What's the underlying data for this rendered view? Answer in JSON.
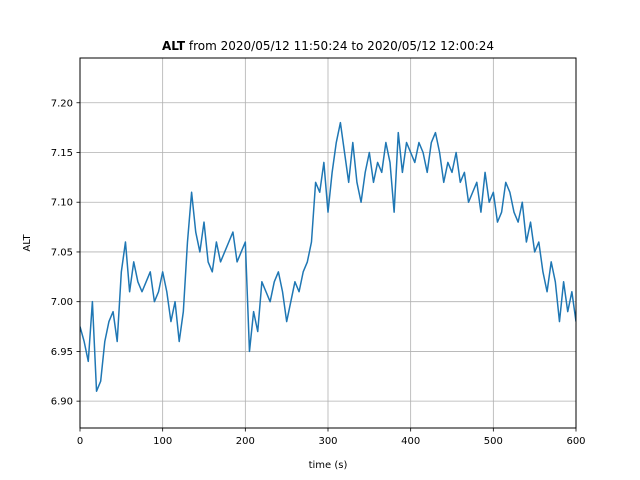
{
  "chart_data": {
    "type": "line",
    "title_bold": "ALT",
    "title_rest": " from 2020/05/12 11:50:24 to 2020/05/12 12:00:24",
    "xlabel": "time (s)",
    "ylabel": "ALT",
    "xlim": [
      0,
      600
    ],
    "ylim": [
      6.873,
      7.245
    ],
    "xticks": [
      0,
      100,
      200,
      300,
      400,
      500,
      600
    ],
    "xtick_labels": [
      "0",
      "100",
      "200",
      "300",
      "400",
      "500",
      "600"
    ],
    "yticks": [
      6.9,
      6.95,
      7.0,
      7.05,
      7.1,
      7.15,
      7.2
    ],
    "ytick_labels": [
      "6.90",
      "6.95",
      "7.00",
      "7.05",
      "7.10",
      "7.15",
      "7.20"
    ],
    "grid": true,
    "series": [
      {
        "color": "#1f77b4",
        "x": [
          0,
          5,
          10,
          15,
          20,
          25,
          30,
          35,
          40,
          45,
          50,
          55,
          60,
          65,
          70,
          75,
          80,
          85,
          90,
          95,
          100,
          105,
          110,
          115,
          120,
          125,
          130,
          135,
          140,
          145,
          150,
          155,
          160,
          165,
          170,
          175,
          180,
          185,
          190,
          195,
          200,
          205,
          210,
          215,
          220,
          225,
          230,
          235,
          240,
          245,
          250,
          255,
          260,
          265,
          270,
          275,
          280,
          285,
          290,
          295,
          300,
          305,
          310,
          315,
          320,
          325,
          330,
          335,
          340,
          345,
          350,
          355,
          360,
          365,
          370,
          375,
          380,
          385,
          390,
          395,
          400,
          405,
          410,
          415,
          420,
          425,
          430,
          435,
          440,
          445,
          450,
          455,
          460,
          465,
          470,
          475,
          480,
          485,
          490,
          495,
          500,
          505,
          510,
          515,
          520,
          525,
          530,
          535,
          540,
          545,
          550,
          555,
          560,
          565,
          570,
          575,
          580,
          585,
          590,
          595,
          600
        ],
        "y": [
          6.975,
          6.96,
          6.94,
          7.0,
          6.91,
          6.92,
          6.96,
          6.98,
          6.99,
          6.96,
          7.03,
          7.06,
          7.01,
          7.04,
          7.02,
          7.01,
          7.02,
          7.03,
          7.0,
          7.01,
          7.03,
          7.01,
          6.98,
          7.0,
          6.96,
          6.99,
          7.06,
          7.11,
          7.07,
          7.05,
          7.08,
          7.04,
          7.03,
          7.06,
          7.04,
          7.05,
          7.06,
          7.07,
          7.04,
          7.05,
          7.06,
          6.95,
          6.99,
          6.97,
          7.02,
          7.01,
          7.0,
          7.02,
          7.03,
          7.01,
          6.98,
          7.0,
          7.02,
          7.01,
          7.03,
          7.04,
          7.06,
          7.12,
          7.11,
          7.14,
          7.09,
          7.13,
          7.16,
          7.18,
          7.15,
          7.12,
          7.16,
          7.12,
          7.1,
          7.13,
          7.15,
          7.12,
          7.14,
          7.13,
          7.16,
          7.14,
          7.09,
          7.17,
          7.13,
          7.16,
          7.15,
          7.14,
          7.16,
          7.15,
          7.13,
          7.16,
          7.17,
          7.15,
          7.12,
          7.14,
          7.13,
          7.15,
          7.12,
          7.13,
          7.1,
          7.11,
          7.12,
          7.09,
          7.13,
          7.1,
          7.11,
          7.08,
          7.09,
          7.12,
          7.11,
          7.09,
          7.08,
          7.1,
          7.06,
          7.08,
          7.05,
          7.06,
          7.03,
          7.01,
          7.04,
          7.02,
          6.98,
          7.02,
          6.99,
          7.01,
          6.98
        ]
      }
    ]
  }
}
